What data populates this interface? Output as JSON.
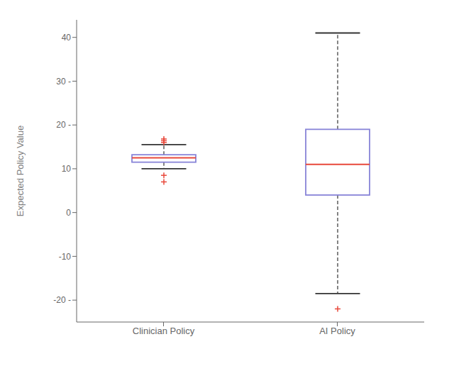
{
  "chart_data": {
    "type": "box",
    "ylabel": "Expected Policy Value",
    "categories": [
      "Clinician Policy",
      "AI Policy"
    ],
    "boxes": [
      {
        "median": 12.5,
        "q1": 11.5,
        "q3": 13.2,
        "whislo": 10.0,
        "whishi": 15.5,
        "fliers": [
          16.0,
          16.4,
          16.8,
          8.5,
          7.0
        ]
      },
      {
        "median": 11.0,
        "q1": 4.0,
        "q3": 19.0,
        "whislo": -18.5,
        "whishi": 41.0,
        "fliers": [
          -22.0
        ]
      }
    ],
    "ylim": [
      -25,
      44
    ],
    "yticks": [
      40,
      {
        "value": 30,
        "label": "30 -"
      },
      {
        "value": 20,
        "label": "20 -"
      },
      10,
      0,
      -10,
      {
        "value": -20,
        "label": "-20 -"
      }
    ],
    "grid": false
  }
}
